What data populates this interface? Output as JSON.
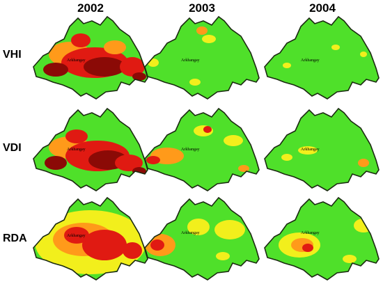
{
  "years": [
    "2002",
    "2003",
    "2004"
  ],
  "indices": [
    "VHI",
    "VDI",
    "RDA"
  ],
  "region_label": "Arkhangay",
  "colors": {
    "normal": "#4fe02a",
    "mild": "#f2ef1c",
    "moderate": "#ff9a1a",
    "severe": "#e01a12",
    "extreme": "#8b0a06",
    "outline": "#1a2a10"
  },
  "maps": [
    {
      "index": "VHI",
      "year": "2002",
      "drought": "widespread severe"
    },
    {
      "index": "VHI",
      "year": "2003",
      "drought": "minor"
    },
    {
      "index": "VHI",
      "year": "2004",
      "drought": "minor"
    },
    {
      "index": "VDI",
      "year": "2002",
      "drought": "widespread severe"
    },
    {
      "index": "VDI",
      "year": "2003",
      "drought": "moderate patches"
    },
    {
      "index": "VDI",
      "year": "2004",
      "drought": "minor"
    },
    {
      "index": "RDA",
      "year": "2002",
      "drought": "widespread moderate-severe"
    },
    {
      "index": "RDA",
      "year": "2003",
      "drought": "partial"
    },
    {
      "index": "RDA",
      "year": "2004",
      "drought": "partial"
    }
  ]
}
